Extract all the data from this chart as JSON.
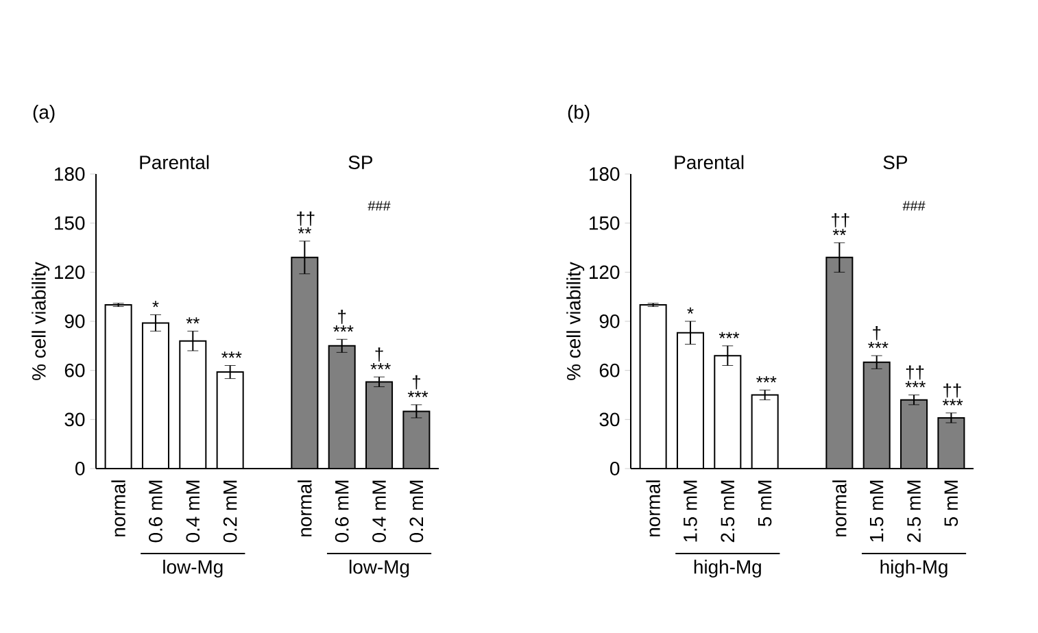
{
  "chart_data": [
    {
      "type": "bar",
      "title": "(a)",
      "ylabel": "% cell viability",
      "categories": [
        "normal",
        "0.6 mM",
        "0.4 mM",
        "0.2 mM",
        null,
        "normal",
        "0.6 mM",
        "0.4 mM",
        "0.2 mM"
      ],
      "values": [
        100,
        89,
        78,
        59,
        null,
        129,
        75,
        53,
        35
      ],
      "colors": [
        "#ffffff",
        "#ffffff",
        "#ffffff",
        "#ffffff",
        null,
        "#808080",
        "#808080",
        "#808080",
        "#808080"
      ],
      "errors": [
        1,
        5,
        6,
        4,
        null,
        10,
        4,
        3,
        4
      ],
      "value_labels": [
        null,
        "*",
        "**",
        "***",
        null,
        "†† **",
        "† ***",
        "† ***",
        "† ***"
      ],
      "ylim": [
        0,
        180
      ],
      "yticks": [
        0,
        30,
        60,
        90,
        120,
        150,
        180
      ],
      "annotations": [
        "Parental",
        "SP",
        "low-Mg",
        "low-Mg",
        "###"
      ]
    },
    {
      "type": "bar",
      "title": "(b)",
      "ylabel": "% cell viability",
      "categories": [
        "normal",
        "1.5 mM",
        "2.5 mM",
        "5 mM",
        null,
        "normal",
        "1.5 mM",
        "2.5 mM",
        "5 mM"
      ],
      "values": [
        100,
        83,
        69,
        45,
        null,
        129,
        65,
        42,
        31
      ],
      "colors": [
        "#ffffff",
        "#ffffff",
        "#ffffff",
        "#ffffff",
        null,
        "#808080",
        "#808080",
        "#808080",
        "#808080"
      ],
      "errors": [
        1,
        7,
        6,
        3,
        null,
        9,
        4,
        3,
        3
      ],
      "value_labels": [
        null,
        "*",
        "***",
        "***",
        null,
        "†† **",
        "† ***",
        "†† ***",
        "†† ***"
      ],
      "ylim": [
        0,
        180
      ],
      "yticks": [
        0,
        30,
        60,
        90,
        120,
        150,
        180
      ],
      "annotations": [
        "Parental",
        "SP",
        "high-Mg",
        "high-Mg",
        "###"
      ]
    }
  ]
}
